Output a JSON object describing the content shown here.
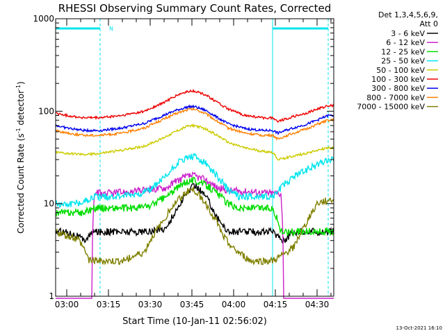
{
  "chart_data": {
    "type": "line",
    "title": "RHESSI Observing Summary Count Rates, Corrected",
    "xlabel": "Start Time (10-Jan-11 02:56:02)",
    "ylabel_main": "Corrected Count Rate (s",
    "ylabel_sup1": "-1",
    "ylabel_mid": " detector",
    "ylabel_sup2": "-1",
    "ylabel_end": ")",
    "y_scale": "log",
    "ylim": [
      1,
      1000
    ],
    "xlim_minutes": [
      56,
      156
    ],
    "x_ticks": [
      {
        "label": "03:00",
        "minute": 60
      },
      {
        "label": "03:15",
        "minute": 75
      },
      {
        "label": "03:30",
        "minute": 90
      },
      {
        "label": "03:45",
        "minute": 105
      },
      {
        "label": "04:00",
        "minute": 120
      },
      {
        "label": "04:15",
        "minute": 135
      },
      {
        "label": "04:30",
        "minute": 150
      }
    ],
    "y_ticks": [
      {
        "label": "1",
        "value": 1
      },
      {
        "label": "10",
        "value": 10
      },
      {
        "label": "100",
        "value": 100
      },
      {
        "label": "1000",
        "value": 1000
      }
    ],
    "legend_header": [
      "Det 1,3,4,5,6,9,",
      "Att 0"
    ],
    "legend_position": "right",
    "night_label": "N",
    "footer_date": "13-Oct-2021 16:10",
    "series": [
      {
        "name": "3 - 6 keV",
        "color": "#000000",
        "x": [
          56,
          60,
          64,
          66,
          70,
          76,
          84,
          90,
          96,
          100,
          104,
          106,
          110,
          114,
          118,
          122,
          126,
          130,
          134,
          138,
          142,
          146,
          150,
          154
        ],
        "y": [
          5,
          5,
          4.5,
          4,
          5,
          5,
          5,
          5,
          5.5,
          9,
          14,
          16,
          12,
          7,
          5,
          5,
          5,
          5,
          5,
          4,
          5,
          5,
          5,
          5
        ]
      },
      {
        "name": "6 - 12 keV",
        "color": "#cc22cc",
        "x": [
          56,
          66,
          69,
          70,
          74,
          84,
          96,
          100,
          104,
          106,
          110,
          114,
          118,
          126,
          134,
          137,
          138,
          140,
          154
        ],
        "y": [
          0.8,
          0.8,
          0.8,
          13,
          13,
          13.5,
          15,
          18,
          20,
          20,
          18,
          15,
          14,
          13.5,
          13,
          13,
          0.8,
          0.8,
          0.8
        ]
      },
      {
        "name": "12 - 25 keV",
        "color": "#00dd00",
        "x": [
          56,
          60,
          66,
          70,
          76,
          84,
          90,
          96,
          100,
          104,
          106,
          110,
          114,
          118,
          122,
          130,
          134,
          137,
          142,
          154
        ],
        "y": [
          8,
          8,
          8,
          9,
          9,
          9,
          9.5,
          12,
          15,
          18,
          18,
          16,
          13,
          10,
          9,
          9,
          9,
          5,
          5,
          5
        ]
      },
      {
        "name": "25 - 50 keV",
        "color": "#00e5ee",
        "x": [
          56,
          60,
          66,
          70,
          76,
          84,
          90,
          96,
          100,
          104,
          106,
          110,
          114,
          118,
          122,
          130,
          134,
          137,
          142,
          148,
          154
        ],
        "y": [
          10,
          10,
          10.5,
          12,
          12,
          12.5,
          14,
          20,
          28,
          32,
          32,
          27,
          20,
          14,
          12,
          12,
          12,
          15,
          20,
          25,
          30
        ]
      },
      {
        "name": "50 - 100 keV",
        "color": "#cccc00",
        "x": [
          56,
          60,
          66,
          72,
          80,
          88,
          94,
          100,
          104,
          106,
          110,
          114,
          118,
          124,
          130,
          134,
          136,
          140,
          146,
          150,
          154
        ],
        "y": [
          36,
          35,
          34,
          35,
          38,
          42,
          50,
          62,
          70,
          70,
          64,
          55,
          46,
          40,
          37,
          36,
          30,
          32,
          35,
          38,
          40
        ]
      },
      {
        "name": "100 - 300 keV",
        "color": "#ee0000",
        "x": [
          56,
          60,
          66,
          72,
          80,
          88,
          94,
          100,
          104,
          106,
          110,
          114,
          118,
          124,
          130,
          134,
          136,
          140,
          146,
          150,
          154
        ],
        "y": [
          95,
          90,
          85,
          85,
          90,
          100,
          120,
          150,
          165,
          165,
          150,
          125,
          105,
          90,
          85,
          85,
          78,
          85,
          95,
          105,
          115
        ]
      },
      {
        "name": "300 - 800 keV",
        "color": "#0000ee",
        "x": [
          56,
          60,
          66,
          72,
          80,
          88,
          94,
          100,
          104,
          106,
          110,
          114,
          118,
          124,
          130,
          134,
          136,
          140,
          146,
          150,
          154
        ],
        "y": [
          70,
          66,
          62,
          62,
          66,
          74,
          88,
          104,
          112,
          112,
          102,
          86,
          73,
          65,
          62,
          62,
          58,
          64,
          72,
          80,
          90
        ]
      },
      {
        "name": "800 - 7000 keV",
        "color": "#ff7f00",
        "x": [
          56,
          60,
          66,
          72,
          80,
          88,
          94,
          100,
          104,
          106,
          110,
          114,
          118,
          124,
          130,
          134,
          136,
          140,
          146,
          150,
          154
        ],
        "y": [
          62,
          58,
          55,
          55,
          58,
          66,
          80,
          96,
          105,
          105,
          94,
          78,
          66,
          58,
          55,
          55,
          50,
          56,
          64,
          72,
          80
        ]
      },
      {
        "name": "7000 - 15000 keV",
        "color": "#808000",
        "x": [
          56,
          60,
          64,
          68,
          72,
          80,
          88,
          94,
          100,
          104,
          106,
          108,
          112,
          116,
          120,
          126,
          134,
          138,
          142,
          146,
          150,
          154
        ],
        "y": [
          5,
          4.5,
          4.2,
          2.5,
          2.4,
          2.4,
          3,
          6,
          11,
          14,
          14,
          12,
          8,
          4.5,
          3.2,
          2.4,
          2.4,
          2.8,
          3.5,
          6,
          10,
          11
        ]
      }
    ],
    "flag_segments": {
      "color": "#00e5ee",
      "segments": [
        [
          56,
          72
        ],
        [
          134,
          154
        ]
      ],
      "dashed_x": [
        72,
        154
      ],
      "solid_x": [
        56,
        134
      ]
    }
  }
}
